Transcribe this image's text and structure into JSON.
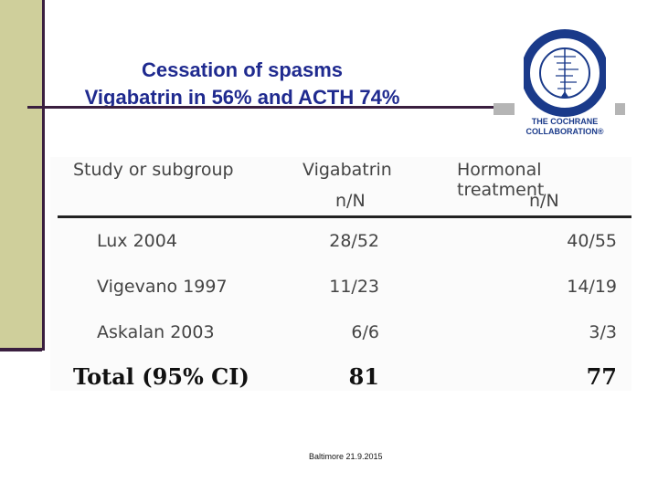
{
  "slide": {
    "title_line1": "Cessation of spasms",
    "title_line2": "Vigabatrin in 56%  and ACTH 74%",
    "logo_text": "THE COCHRANE\nCOLLABORATION®",
    "footer": "Baltimore 21.9.2015",
    "colors": {
      "title": "#1f2a8f",
      "side_bar": "#cfcf9b",
      "accent_line": "#3a1f3f",
      "logo": "#1a3a8a"
    }
  },
  "table": {
    "headers": {
      "study": "Study or subgroup",
      "vig": "Vigabatrin",
      "vig_sub": "n/N",
      "hor": "Hormonal treatment",
      "hor_sub": "n/N"
    },
    "rows": [
      {
        "study": "Lux 2004",
        "vig": "28/52",
        "hor": "40/55"
      },
      {
        "study": "Vigevano 1997",
        "vig": "11/23",
        "hor": "14/19"
      },
      {
        "study": "Askalan 2003",
        "vig": "6/6",
        "hor": "3/3"
      }
    ],
    "total": {
      "label": "Total (95% CI)",
      "vig": "81",
      "hor": "77"
    }
  }
}
